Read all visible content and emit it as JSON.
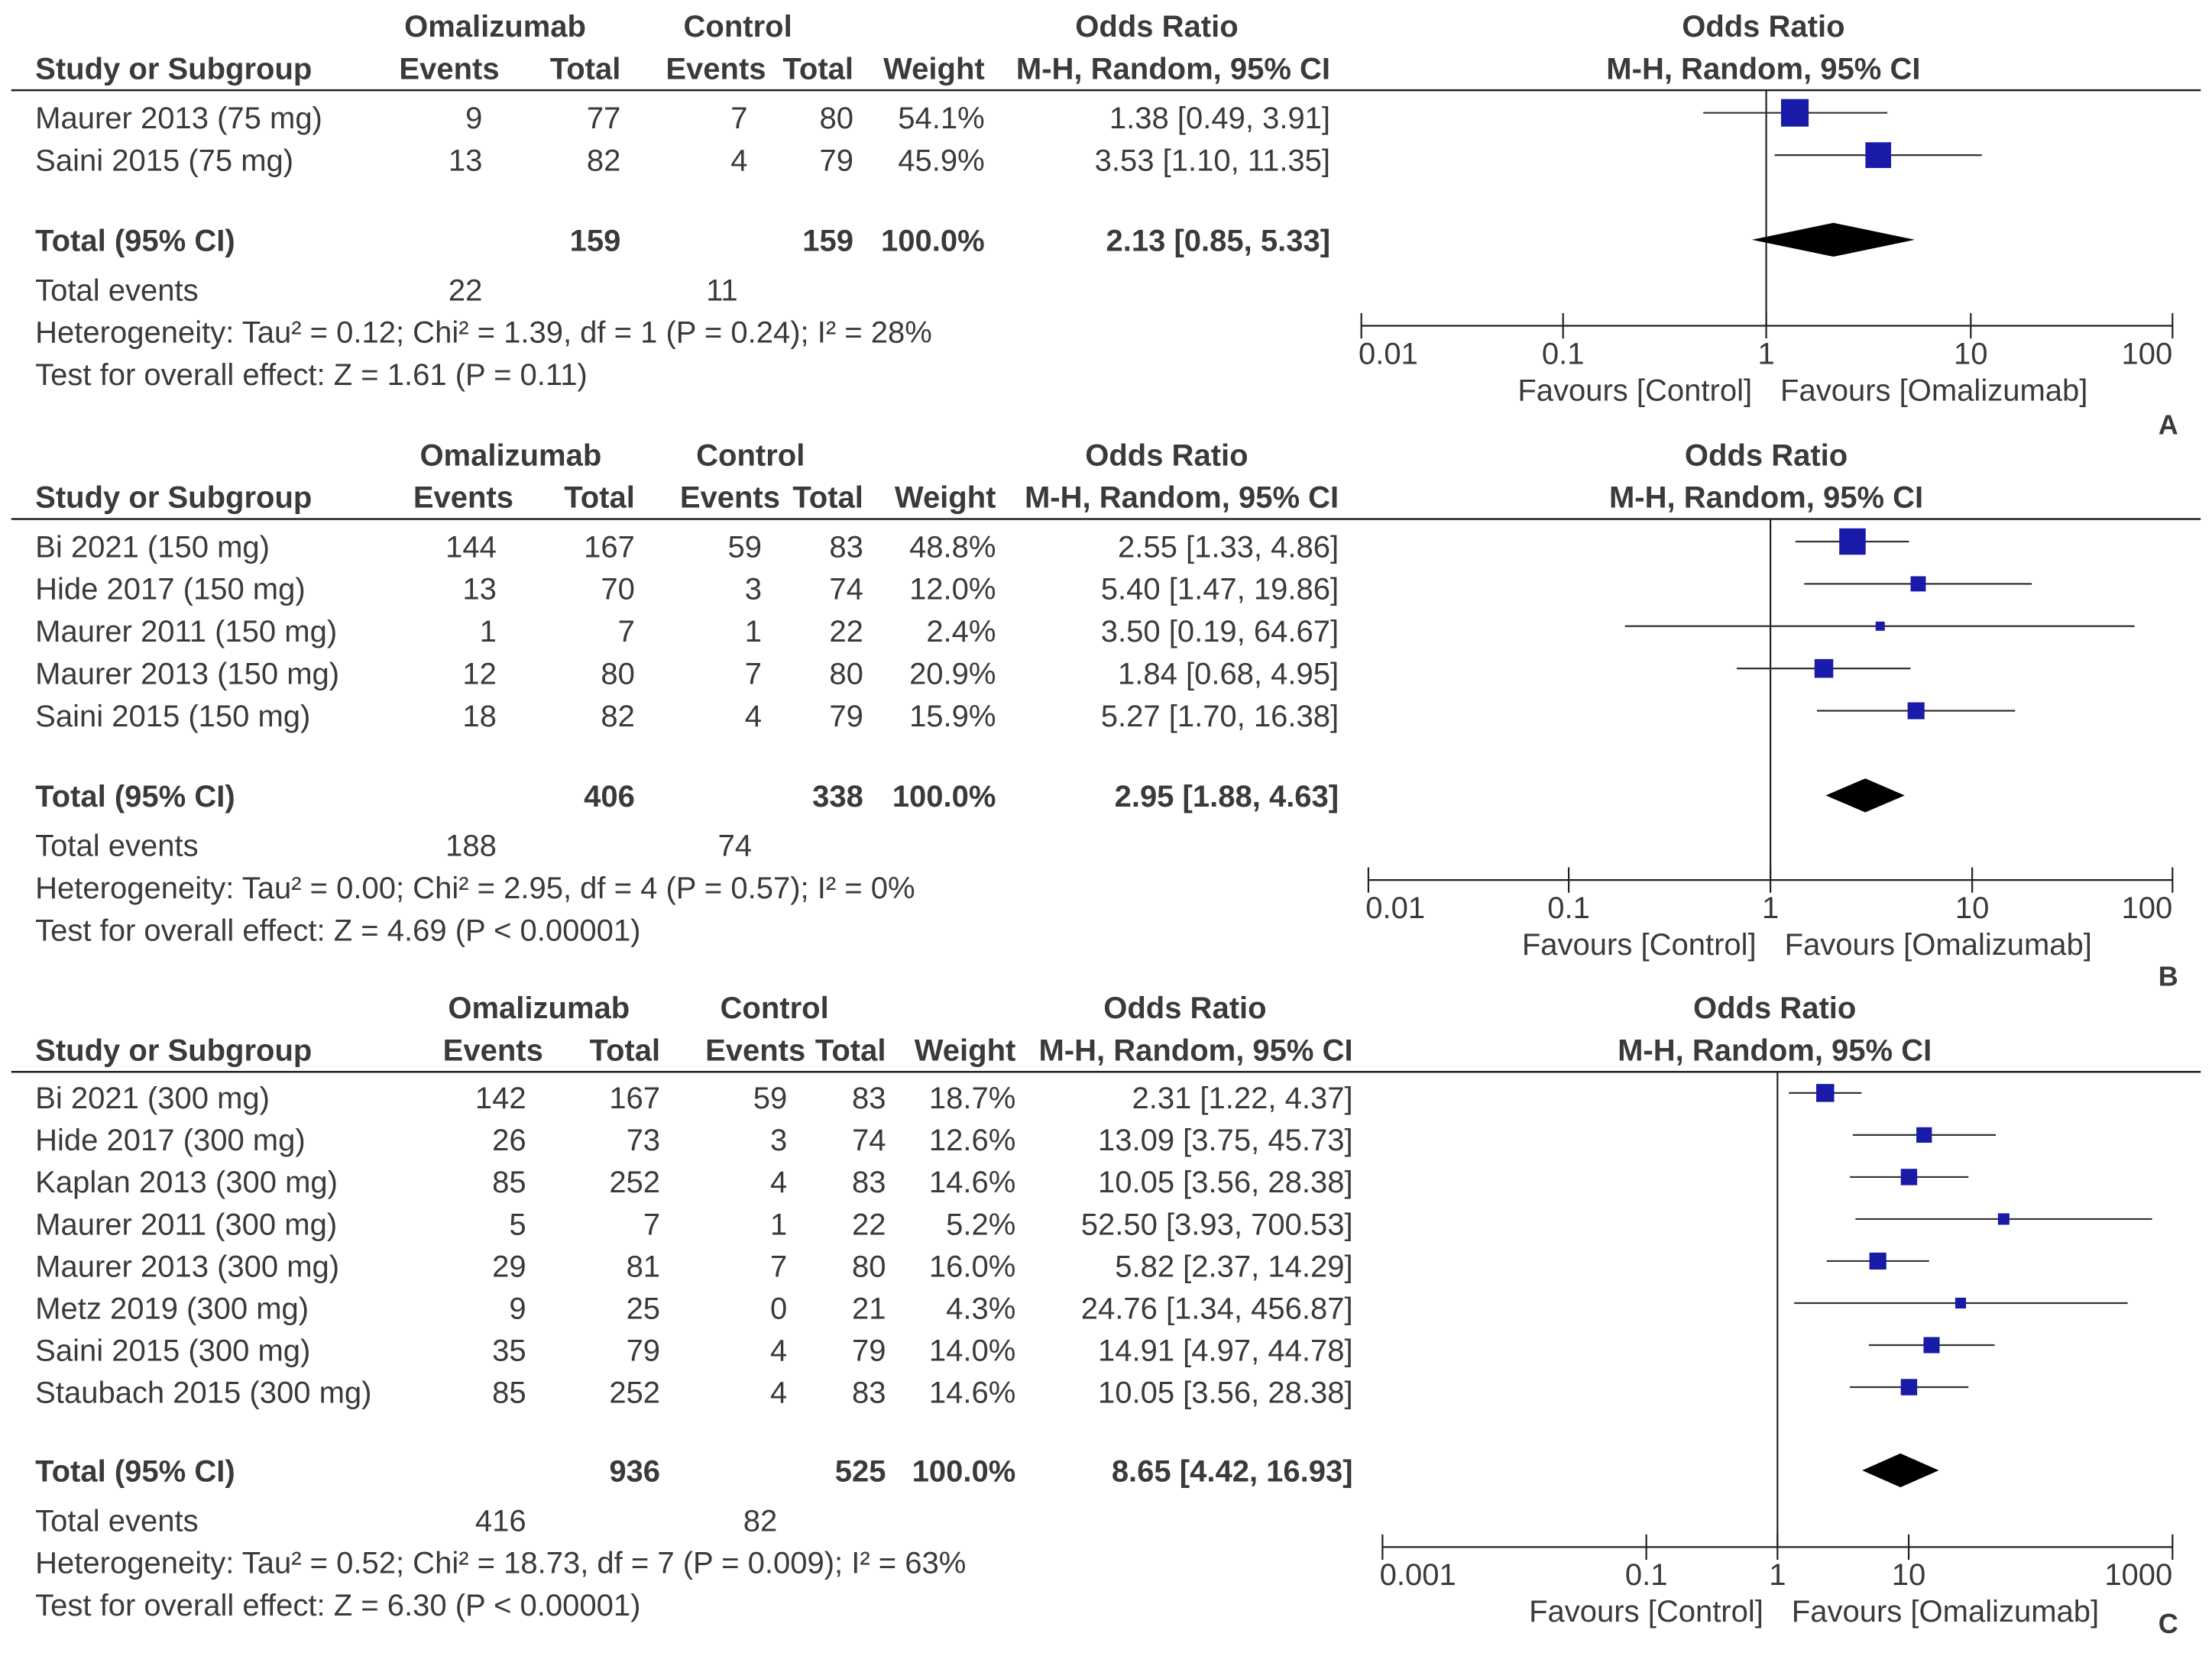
{
  "headers": {
    "study": "Study or Subgroup",
    "group_omalizumab": "Omalizumab",
    "group_control": "Control",
    "events": "Events",
    "total": "Total",
    "weight": "Weight",
    "odds_ratio": "Odds Ratio",
    "method": "M-H, Random, 95% CI"
  },
  "favours": {
    "left": "Favours [Control]",
    "right": "Favours [Omalizumab]"
  },
  "colors": {
    "square": "#1a1aa8",
    "diamond": "#000000",
    "line": "#333333"
  },
  "chart_data": [
    {
      "type": "forest",
      "panel": "A",
      "studies": [
        {
          "name": "Maurer 2013 (75 mg)",
          "omal_events": "9",
          "omal_total": "77",
          "ctrl_events": "7",
          "ctrl_total": "80",
          "weight": "54.1%",
          "ci_text": "1.38 [0.49, 3.91]",
          "or": 1.38,
          "lo": 0.49,
          "hi": 3.91,
          "w": 54.1
        },
        {
          "name": "Saini 2015 (75 mg)",
          "omal_events": "13",
          "omal_total": "82",
          "ctrl_events": "4",
          "ctrl_total": "79",
          "weight": "45.9%",
          "ci_text": "3.53 [1.10, 11.35]",
          "or": 3.53,
          "lo": 1.1,
          "hi": 11.35,
          "w": 45.9
        }
      ],
      "total": {
        "label": "Total (95% CI)",
        "omal_total": "159",
        "ctrl_total": "159",
        "weight": "100.0%",
        "ci_text": "2.13 [0.85, 5.33]",
        "or": 2.13,
        "lo": 0.85,
        "hi": 5.33
      },
      "total_events": {
        "label": "Total events",
        "omal": "22",
        "ctrl": "11"
      },
      "heterogeneity": "Heterogeneity: Tau² = 0.12; Chi² = 1.39, df = 1 (P = 0.24); I² = 28%",
      "overall_effect": "Test for overall effect: Z = 1.61 (P = 0.11)",
      "axis": {
        "scale": "log",
        "ticks": [
          0.01,
          0.1,
          1,
          10,
          100
        ],
        "tick_labels": [
          "0.01",
          "0.1",
          "1",
          "10",
          "100"
        ]
      }
    },
    {
      "type": "forest",
      "panel": "B",
      "studies": [
        {
          "name": "Bi 2021 (150 mg)",
          "omal_events": "144",
          "omal_total": "167",
          "ctrl_events": "59",
          "ctrl_total": "83",
          "weight": "48.8%",
          "ci_text": "2.55 [1.33, 4.86]",
          "or": 2.55,
          "lo": 1.33,
          "hi": 4.86,
          "w": 48.8
        },
        {
          "name": "Hide 2017 (150 mg)",
          "omal_events": "13",
          "omal_total": "70",
          "ctrl_events": "3",
          "ctrl_total": "74",
          "weight": "12.0%",
          "ci_text": "5.40 [1.47, 19.86]",
          "or": 5.4,
          "lo": 1.47,
          "hi": 19.86,
          "w": 12.0
        },
        {
          "name": "Maurer 2011 (150 mg)",
          "omal_events": "1",
          "omal_total": "7",
          "ctrl_events": "1",
          "ctrl_total": "22",
          "weight": "2.4%",
          "ci_text": "3.50 [0.19, 64.67]",
          "or": 3.5,
          "lo": 0.19,
          "hi": 64.67,
          "w": 2.4
        },
        {
          "name": "Maurer 2013 (150 mg)",
          "omal_events": "12",
          "omal_total": "80",
          "ctrl_events": "7",
          "ctrl_total": "80",
          "weight": "20.9%",
          "ci_text": "1.84 [0.68, 4.95]",
          "or": 1.84,
          "lo": 0.68,
          "hi": 4.95,
          "w": 20.9
        },
        {
          "name": "Saini 2015 (150 mg)",
          "omal_events": "18",
          "omal_total": "82",
          "ctrl_events": "4",
          "ctrl_total": "79",
          "weight": "15.9%",
          "ci_text": "5.27 [1.70, 16.38]",
          "or": 5.27,
          "lo": 1.7,
          "hi": 16.38,
          "w": 15.9
        }
      ],
      "total": {
        "label": "Total (95% CI)",
        "omal_total": "406",
        "ctrl_total": "338",
        "weight": "100.0%",
        "ci_text": "2.95 [1.88, 4.63]",
        "or": 2.95,
        "lo": 1.88,
        "hi": 4.63
      },
      "total_events": {
        "label": "Total events",
        "omal": "188",
        "ctrl": "74"
      },
      "heterogeneity": "Heterogeneity: Tau² = 0.00; Chi² = 2.95, df = 4 (P = 0.57); I² = 0%",
      "overall_effect": "Test for overall effect: Z = 4.69 (P < 0.00001)",
      "axis": {
        "scale": "log",
        "ticks": [
          0.01,
          0.1,
          1,
          10,
          100
        ],
        "tick_labels": [
          "0.01",
          "0.1",
          "1",
          "10",
          "100"
        ]
      }
    },
    {
      "type": "forest",
      "panel": "C",
      "studies": [
        {
          "name": "Bi 2021 (300 mg)",
          "omal_events": "142",
          "omal_total": "167",
          "ctrl_events": "59",
          "ctrl_total": "83",
          "weight": "18.7%",
          "ci_text": "2.31 [1.22, 4.37]",
          "or": 2.31,
          "lo": 1.22,
          "hi": 4.37,
          "w": 18.7
        },
        {
          "name": "Hide 2017 (300 mg)",
          "omal_events": "26",
          "omal_total": "73",
          "ctrl_events": "3",
          "ctrl_total": "74",
          "weight": "12.6%",
          "ci_text": "13.09 [3.75, 45.73]",
          "or": 13.09,
          "lo": 3.75,
          "hi": 45.73,
          "w": 12.6
        },
        {
          "name": "Kaplan 2013 (300 mg)",
          "omal_events": "85",
          "omal_total": "252",
          "ctrl_events": "4",
          "ctrl_total": "83",
          "weight": "14.6%",
          "ci_text": "10.05 [3.56, 28.38]",
          "or": 10.05,
          "lo": 3.56,
          "hi": 28.38,
          "w": 14.6
        },
        {
          "name": "Maurer 2011 (300 mg)",
          "omal_events": "5",
          "omal_total": "7",
          "ctrl_events": "1",
          "ctrl_total": "22",
          "weight": "5.2%",
          "ci_text": "52.50 [3.93, 700.53]",
          "or": 52.5,
          "lo": 3.93,
          "hi": 700.53,
          "w": 5.2
        },
        {
          "name": "Maurer 2013 (300 mg)",
          "omal_events": "29",
          "omal_total": "81",
          "ctrl_events": "7",
          "ctrl_total": "80",
          "weight": "16.0%",
          "ci_text": "5.82 [2.37, 14.29]",
          "or": 5.82,
          "lo": 2.37,
          "hi": 14.29,
          "w": 16.0
        },
        {
          "name": "Metz 2019 (300 mg)",
          "omal_events": "9",
          "omal_total": "25",
          "ctrl_events": "0",
          "ctrl_total": "21",
          "weight": "4.3%",
          "ci_text": "24.76 [1.34, 456.87]",
          "or": 24.76,
          "lo": 1.34,
          "hi": 456.87,
          "w": 4.3
        },
        {
          "name": "Saini 2015 (300 mg)",
          "omal_events": "35",
          "omal_total": "79",
          "ctrl_events": "4",
          "ctrl_total": "79",
          "weight": "14.0%",
          "ci_text": "14.91 [4.97, 44.78]",
          "or": 14.91,
          "lo": 4.97,
          "hi": 44.78,
          "w": 14.0
        },
        {
          "name": "Staubach 2015 (300 mg)",
          "omal_events": "85",
          "omal_total": "252",
          "ctrl_events": "4",
          "ctrl_total": "83",
          "weight": "14.6%",
          "ci_text": "10.05 [3.56, 28.38]",
          "or": 10.05,
          "lo": 3.56,
          "hi": 28.38,
          "w": 14.6
        }
      ],
      "total": {
        "label": "Total (95% CI)",
        "omal_total": "936",
        "ctrl_total": "525",
        "weight": "100.0%",
        "ci_text": "8.65 [4.42, 16.93]",
        "or": 8.65,
        "lo": 4.42,
        "hi": 16.93
      },
      "total_events": {
        "label": "Total events",
        "omal": "416",
        "ctrl": "82"
      },
      "heterogeneity": "Heterogeneity: Tau² = 0.52; Chi² = 18.73, df = 7 (P = 0.009); I² = 63%",
      "overall_effect": "Test for overall effect: Z = 6.30 (P < 0.00001)",
      "axis": {
        "scale": "log",
        "ticks": [
          0.001,
          0.1,
          1,
          10,
          1000
        ],
        "tick_labels": [
          "0.001",
          "0.1",
          "1",
          "10",
          "1000"
        ]
      }
    }
  ]
}
